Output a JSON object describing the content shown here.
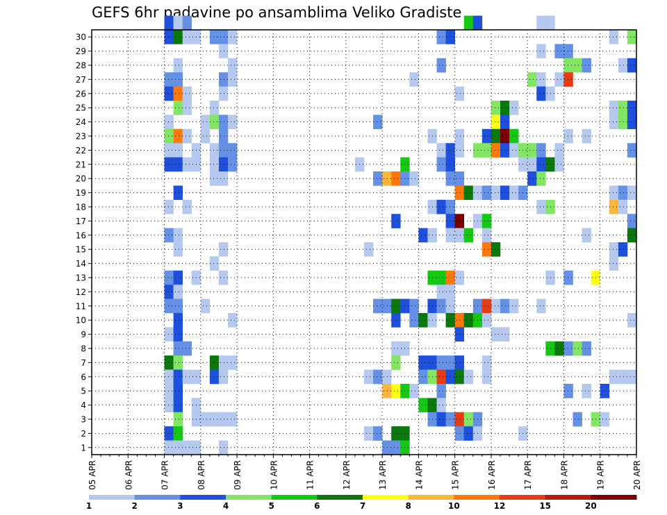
{
  "chart_data": {
    "type": "heatmap",
    "title": "GEFS 6hr padavine po ansamblima Veliko Gradiste",
    "xlabel": "",
    "ylabel": "",
    "x_ticks": [
      "05 APR",
      "06 APR",
      "07 APR",
      "08 APR",
      "09 APR",
      "10 APR",
      "11 APR",
      "12 APR",
      "13 APR",
      "14 APR",
      "15 APR",
      "16 APR",
      "17 APR",
      "18 APR",
      "19 APR",
      "20 APR"
    ],
    "y_ticks": [
      1,
      2,
      3,
      4,
      5,
      6,
      7,
      8,
      9,
      10,
      11,
      12,
      13,
      14,
      15,
      16,
      17,
      18,
      19,
      20,
      21,
      22,
      23,
      24,
      25,
      26,
      27,
      28,
      29,
      30
    ],
    "grid": true,
    "steps_per_day": 4,
    "colorbar": {
      "labels": [
        "1",
        "2",
        "3",
        "4",
        "5",
        "6",
        "7",
        "8",
        "10",
        "12",
        "15",
        "20"
      ],
      "colors": [
        "#b4c8f0",
        "#6490e6",
        "#1e50dc",
        "#82e664",
        "#14c814",
        "#0a780a",
        "#ffff14",
        "#ffb43c",
        "#ff780a",
        "#e63c14",
        "#b41e0a",
        "#780000"
      ]
    },
    "cells": [
      [
        8,
        30,
        3
      ],
      [
        9,
        30,
        1
      ],
      [
        10,
        30,
        2
      ],
      [
        41,
        30,
        5
      ],
      [
        42,
        30,
        3
      ],
      [
        49,
        30,
        1
      ],
      [
        50,
        30,
        1
      ],
      [
        8,
        29,
        3
      ],
      [
        9,
        29,
        6
      ],
      [
        10,
        29,
        1
      ],
      [
        11,
        29,
        1
      ],
      [
        13,
        29,
        2
      ],
      [
        14,
        29,
        2
      ],
      [
        15,
        29,
        1
      ],
      [
        38,
        29,
        2
      ],
      [
        39,
        29,
        3
      ],
      [
        57,
        29,
        1
      ],
      [
        59,
        29,
        4
      ],
      [
        60,
        29,
        5
      ],
      [
        14,
        28,
        1
      ],
      [
        49,
        28,
        1
      ],
      [
        51,
        28,
        2
      ],
      [
        52,
        28,
        2
      ],
      [
        9,
        27,
        1
      ],
      [
        15,
        27,
        1
      ],
      [
        38,
        27,
        2
      ],
      [
        52,
        27,
        4
      ],
      [
        53,
        27,
        4
      ],
      [
        54,
        27,
        2
      ],
      [
        58,
        27,
        1
      ],
      [
        59,
        27,
        3
      ],
      [
        60,
        27,
        2
      ],
      [
        8,
        26,
        2
      ],
      [
        9,
        26,
        2
      ],
      [
        14,
        26,
        2
      ],
      [
        15,
        26,
        1
      ],
      [
        35,
        26,
        1
      ],
      [
        48,
        26,
        4
      ],
      [
        49,
        26,
        1
      ],
      [
        51,
        26,
        1
      ],
      [
        52,
        26,
        10
      ],
      [
        8,
        25,
        3
      ],
      [
        9,
        25,
        9
      ],
      [
        10,
        25,
        1
      ],
      [
        14,
        25,
        1
      ],
      [
        40,
        25,
        1
      ],
      [
        49,
        25,
        3
      ],
      [
        50,
        25,
        1
      ],
      [
        9,
        24,
        4
      ],
      [
        10,
        24,
        1
      ],
      [
        13,
        24,
        1
      ],
      [
        44,
        24,
        4
      ],
      [
        45,
        24,
        6
      ],
      [
        46,
        24,
        1
      ],
      [
        57,
        24,
        1
      ],
      [
        58,
        24,
        4
      ],
      [
        59,
        24,
        3
      ],
      [
        8,
        23,
        1
      ],
      [
        12,
        23,
        1
      ],
      [
        13,
        23,
        4
      ],
      [
        14,
        23,
        2
      ],
      [
        15,
        23,
        1
      ],
      [
        31,
        23,
        2
      ],
      [
        44,
        23,
        7
      ],
      [
        45,
        23,
        3
      ],
      [
        57,
        23,
        1
      ],
      [
        58,
        23,
        4
      ],
      [
        59,
        23,
        3
      ],
      [
        60,
        23,
        6
      ],
      [
        61,
        23,
        7
      ],
      [
        8,
        22,
        4
      ],
      [
        9,
        22,
        9
      ],
      [
        10,
        22,
        1
      ],
      [
        12,
        22,
        1
      ],
      [
        14,
        22,
        2
      ],
      [
        37,
        22,
        1
      ],
      [
        40,
        22,
        1
      ],
      [
        43,
        22,
        3
      ],
      [
        44,
        22,
        6
      ],
      [
        45,
        22,
        12
      ],
      [
        46,
        22,
        5
      ],
      [
        52,
        22,
        1
      ],
      [
        54,
        22,
        1
      ],
      [
        8,
        21,
        1
      ],
      [
        9,
        21,
        1
      ],
      [
        11,
        21,
        1
      ],
      [
        13,
        21,
        1
      ],
      [
        14,
        21,
        2
      ],
      [
        15,
        21,
        2
      ],
      [
        38,
        21,
        1
      ],
      [
        39,
        21,
        3
      ],
      [
        40,
        21,
        1
      ],
      [
        42,
        21,
        4
      ],
      [
        43,
        21,
        4
      ],
      [
        44,
        21,
        9
      ],
      [
        45,
        21,
        3
      ],
      [
        46,
        21,
        1
      ],
      [
        47,
        21,
        4
      ],
      [
        48,
        21,
        4
      ],
      [
        49,
        21,
        2
      ],
      [
        51,
        21,
        1
      ],
      [
        59,
        21,
        2
      ],
      [
        8,
        20,
        3
      ],
      [
        9,
        20,
        3
      ],
      [
        10,
        20,
        1
      ],
      [
        11,
        20,
        1
      ],
      [
        13,
        20,
        1
      ],
      [
        14,
        20,
        3
      ],
      [
        15,
        20,
        2
      ],
      [
        29,
        20,
        1
      ],
      [
        34,
        20,
        5
      ],
      [
        38,
        20,
        2
      ],
      [
        39,
        20,
        3
      ],
      [
        47,
        20,
        1
      ],
      [
        48,
        20,
        1
      ],
      [
        49,
        20,
        3
      ],
      [
        50,
        20,
        6
      ],
      [
        51,
        20,
        1
      ],
      [
        13,
        19,
        1
      ],
      [
        14,
        19,
        1
      ],
      [
        31,
        19,
        2
      ],
      [
        32,
        19,
        8
      ],
      [
        33,
        19,
        9
      ],
      [
        34,
        19,
        2
      ],
      [
        35,
        19,
        1
      ],
      [
        39,
        19,
        2
      ],
      [
        40,
        19,
        2
      ],
      [
        48,
        19,
        3
      ],
      [
        49,
        19,
        4
      ],
      [
        9,
        18,
        3
      ],
      [
        40,
        18,
        9
      ],
      [
        41,
        18,
        6
      ],
      [
        42,
        18,
        1
      ],
      [
        43,
        18,
        2
      ],
      [
        44,
        18,
        1
      ],
      [
        45,
        18,
        3
      ],
      [
        46,
        18,
        1
      ],
      [
        47,
        18,
        2
      ],
      [
        57,
        18,
        1
      ],
      [
        58,
        18,
        2
      ],
      [
        59,
        18,
        1
      ],
      [
        60,
        18,
        4
      ],
      [
        61,
        18,
        2
      ],
      [
        8,
        17,
        1
      ],
      [
        10,
        17,
        1
      ],
      [
        37,
        17,
        1
      ],
      [
        38,
        17,
        3
      ],
      [
        39,
        17,
        2
      ],
      [
        49,
        17,
        1
      ],
      [
        50,
        17,
        4
      ],
      [
        57,
        17,
        8
      ],
      [
        58,
        17,
        1
      ],
      [
        33,
        16,
        3
      ],
      [
        39,
        16,
        3
      ],
      [
        40,
        16,
        12
      ],
      [
        42,
        16,
        1
      ],
      [
        43,
        16,
        5
      ],
      [
        59,
        16,
        2
      ],
      [
        60,
        16,
        2
      ],
      [
        8,
        15,
        2
      ],
      [
        9,
        15,
        1
      ],
      [
        36,
        15,
        3
      ],
      [
        37,
        15,
        1
      ],
      [
        39,
        15,
        1
      ],
      [
        40,
        15,
        1
      ],
      [
        41,
        15,
        5
      ],
      [
        43,
        15,
        1
      ],
      [
        54,
        15,
        1
      ],
      [
        59,
        15,
        6
      ],
      [
        60,
        15,
        3
      ],
      [
        61,
        15,
        2
      ],
      [
        9,
        14,
        1
      ],
      [
        14,
        14,
        1
      ],
      [
        30,
        14,
        1
      ],
      [
        43,
        14,
        9
      ],
      [
        44,
        14,
        6
      ],
      [
        57,
        14,
        1
      ],
      [
        58,
        14,
        3
      ],
      [
        61,
        14,
        3
      ],
      [
        13,
        13,
        1
      ],
      [
        57,
        13,
        1
      ],
      [
        8,
        12,
        2
      ],
      [
        9,
        12,
        3
      ],
      [
        11,
        12,
        1
      ],
      [
        14,
        12,
        1
      ],
      [
        37,
        12,
        5
      ],
      [
        38,
        12,
        5
      ],
      [
        39,
        12,
        9
      ],
      [
        40,
        12,
        1
      ],
      [
        50,
        12,
        1
      ],
      [
        52,
        12,
        2
      ],
      [
        55,
        12,
        7
      ],
      [
        8,
        11,
        3
      ],
      [
        9,
        11,
        1
      ],
      [
        38,
        11,
        1
      ],
      [
        39,
        11,
        1
      ],
      [
        8,
        10,
        2
      ],
      [
        9,
        10,
        2
      ],
      [
        12,
        10,
        1
      ],
      [
        31,
        10,
        2
      ],
      [
        32,
        10,
        2
      ],
      [
        33,
        10,
        6
      ],
      [
        34,
        10,
        3
      ],
      [
        35,
        10,
        2
      ],
      [
        37,
        10,
        3
      ],
      [
        38,
        10,
        2
      ],
      [
        39,
        10,
        1
      ],
      [
        42,
        10,
        2
      ],
      [
        43,
        10,
        10
      ],
      [
        44,
        10,
        1
      ],
      [
        45,
        10,
        2
      ],
      [
        46,
        10,
        1
      ],
      [
        49,
        10,
        1
      ],
      [
        9,
        9,
        3
      ],
      [
        15,
        9,
        1
      ],
      [
        33,
        9,
        3
      ],
      [
        35,
        9,
        2
      ],
      [
        36,
        9,
        6
      ],
      [
        37,
        9,
        1
      ],
      [
        39,
        9,
        6
      ],
      [
        40,
        9,
        9
      ],
      [
        41,
        9,
        6
      ],
      [
        42,
        9,
        5
      ],
      [
        43,
        9,
        1
      ],
      [
        59,
        9,
        1
      ],
      [
        60,
        9,
        2
      ],
      [
        8,
        8,
        1
      ],
      [
        9,
        8,
        3
      ],
      [
        40,
        8,
        3
      ],
      [
        44,
        8,
        1
      ],
      [
        45,
        8,
        1
      ],
      [
        9,
        7,
        2
      ],
      [
        10,
        7,
        2
      ],
      [
        33,
        7,
        1
      ],
      [
        34,
        7,
        1
      ],
      [
        50,
        7,
        5
      ],
      [
        51,
        7,
        6
      ],
      [
        52,
        7,
        2
      ],
      [
        53,
        7,
        4
      ],
      [
        54,
        7,
        2
      ],
      [
        8,
        6,
        6
      ],
      [
        9,
        6,
        4
      ],
      [
        13,
        6,
        6
      ],
      [
        14,
        6,
        1
      ],
      [
        15,
        6,
        1
      ],
      [
        33,
        6,
        4
      ],
      [
        36,
        6,
        3
      ],
      [
        37,
        6,
        3
      ],
      [
        38,
        6,
        2
      ],
      [
        39,
        6,
        2
      ],
      [
        40,
        6,
        3
      ],
      [
        43,
        6,
        1
      ],
      [
        8,
        5,
        1
      ],
      [
        9,
        5,
        3
      ],
      [
        10,
        5,
        1
      ],
      [
        11,
        5,
        1
      ],
      [
        13,
        5,
        3
      ],
      [
        14,
        5,
        1
      ],
      [
        30,
        5,
        1
      ],
      [
        31,
        5,
        2
      ],
      [
        32,
        5,
        1
      ],
      [
        36,
        5,
        2
      ],
      [
        37,
        5,
        4
      ],
      [
        38,
        5,
        10
      ],
      [
        39,
        5,
        3
      ],
      [
        40,
        5,
        6
      ],
      [
        41,
        5,
        1
      ],
      [
        43,
        5,
        1
      ],
      [
        57,
        5,
        1
      ],
      [
        58,
        5,
        1
      ],
      [
        59,
        5,
        1
      ],
      [
        60,
        5,
        1
      ],
      [
        8,
        4,
        1
      ],
      [
        9,
        4,
        3
      ],
      [
        32,
        4,
        8
      ],
      [
        33,
        4,
        7
      ],
      [
        34,
        4,
        5
      ],
      [
        35,
        4,
        1
      ],
      [
        38,
        4,
        2
      ],
      [
        52,
        4,
        2
      ],
      [
        54,
        4,
        1
      ],
      [
        56,
        4,
        3
      ],
      [
        8,
        3,
        1
      ],
      [
        9,
        3,
        3
      ],
      [
        11,
        3,
        1
      ],
      [
        36,
        3,
        5
      ],
      [
        37,
        3,
        6
      ],
      [
        38,
        3,
        1
      ],
      [
        60,
        3,
        1
      ],
      [
        9,
        2,
        4
      ],
      [
        11,
        2,
        1
      ],
      [
        12,
        2,
        1
      ],
      [
        13,
        2,
        1
      ],
      [
        14,
        2,
        1
      ],
      [
        15,
        2,
        1
      ],
      [
        37,
        2,
        2
      ],
      [
        38,
        2,
        3
      ],
      [
        39,
        2,
        2
      ],
      [
        40,
        2,
        10
      ],
      [
        41,
        2,
        4
      ],
      [
        42,
        2,
        2
      ],
      [
        53,
        2,
        2
      ],
      [
        55,
        2,
        4
      ],
      [
        56,
        2,
        1
      ],
      [
        60,
        2,
        1
      ],
      [
        61,
        2,
        2
      ],
      [
        8,
        1,
        3
      ],
      [
        9,
        1,
        5
      ],
      [
        30,
        1,
        1
      ],
      [
        31,
        1,
        2
      ],
      [
        33,
        1,
        6
      ],
      [
        34,
        1,
        6
      ],
      [
        40,
        1,
        2
      ],
      [
        41,
        1,
        3
      ],
      [
        42,
        1,
        1
      ],
      [
        47,
        1,
        1
      ],
      [
        60,
        1,
        2
      ],
      [
        61,
        1,
        5
      ],
      [
        8,
        0,
        1
      ],
      [
        9,
        0,
        1
      ],
      [
        10,
        0,
        1
      ],
      [
        11,
        0,
        1
      ],
      [
        14,
        0,
        1
      ],
      [
        32,
        0,
        2
      ],
      [
        33,
        0,
        2
      ],
      [
        34,
        0,
        5
      ]
    ]
  }
}
